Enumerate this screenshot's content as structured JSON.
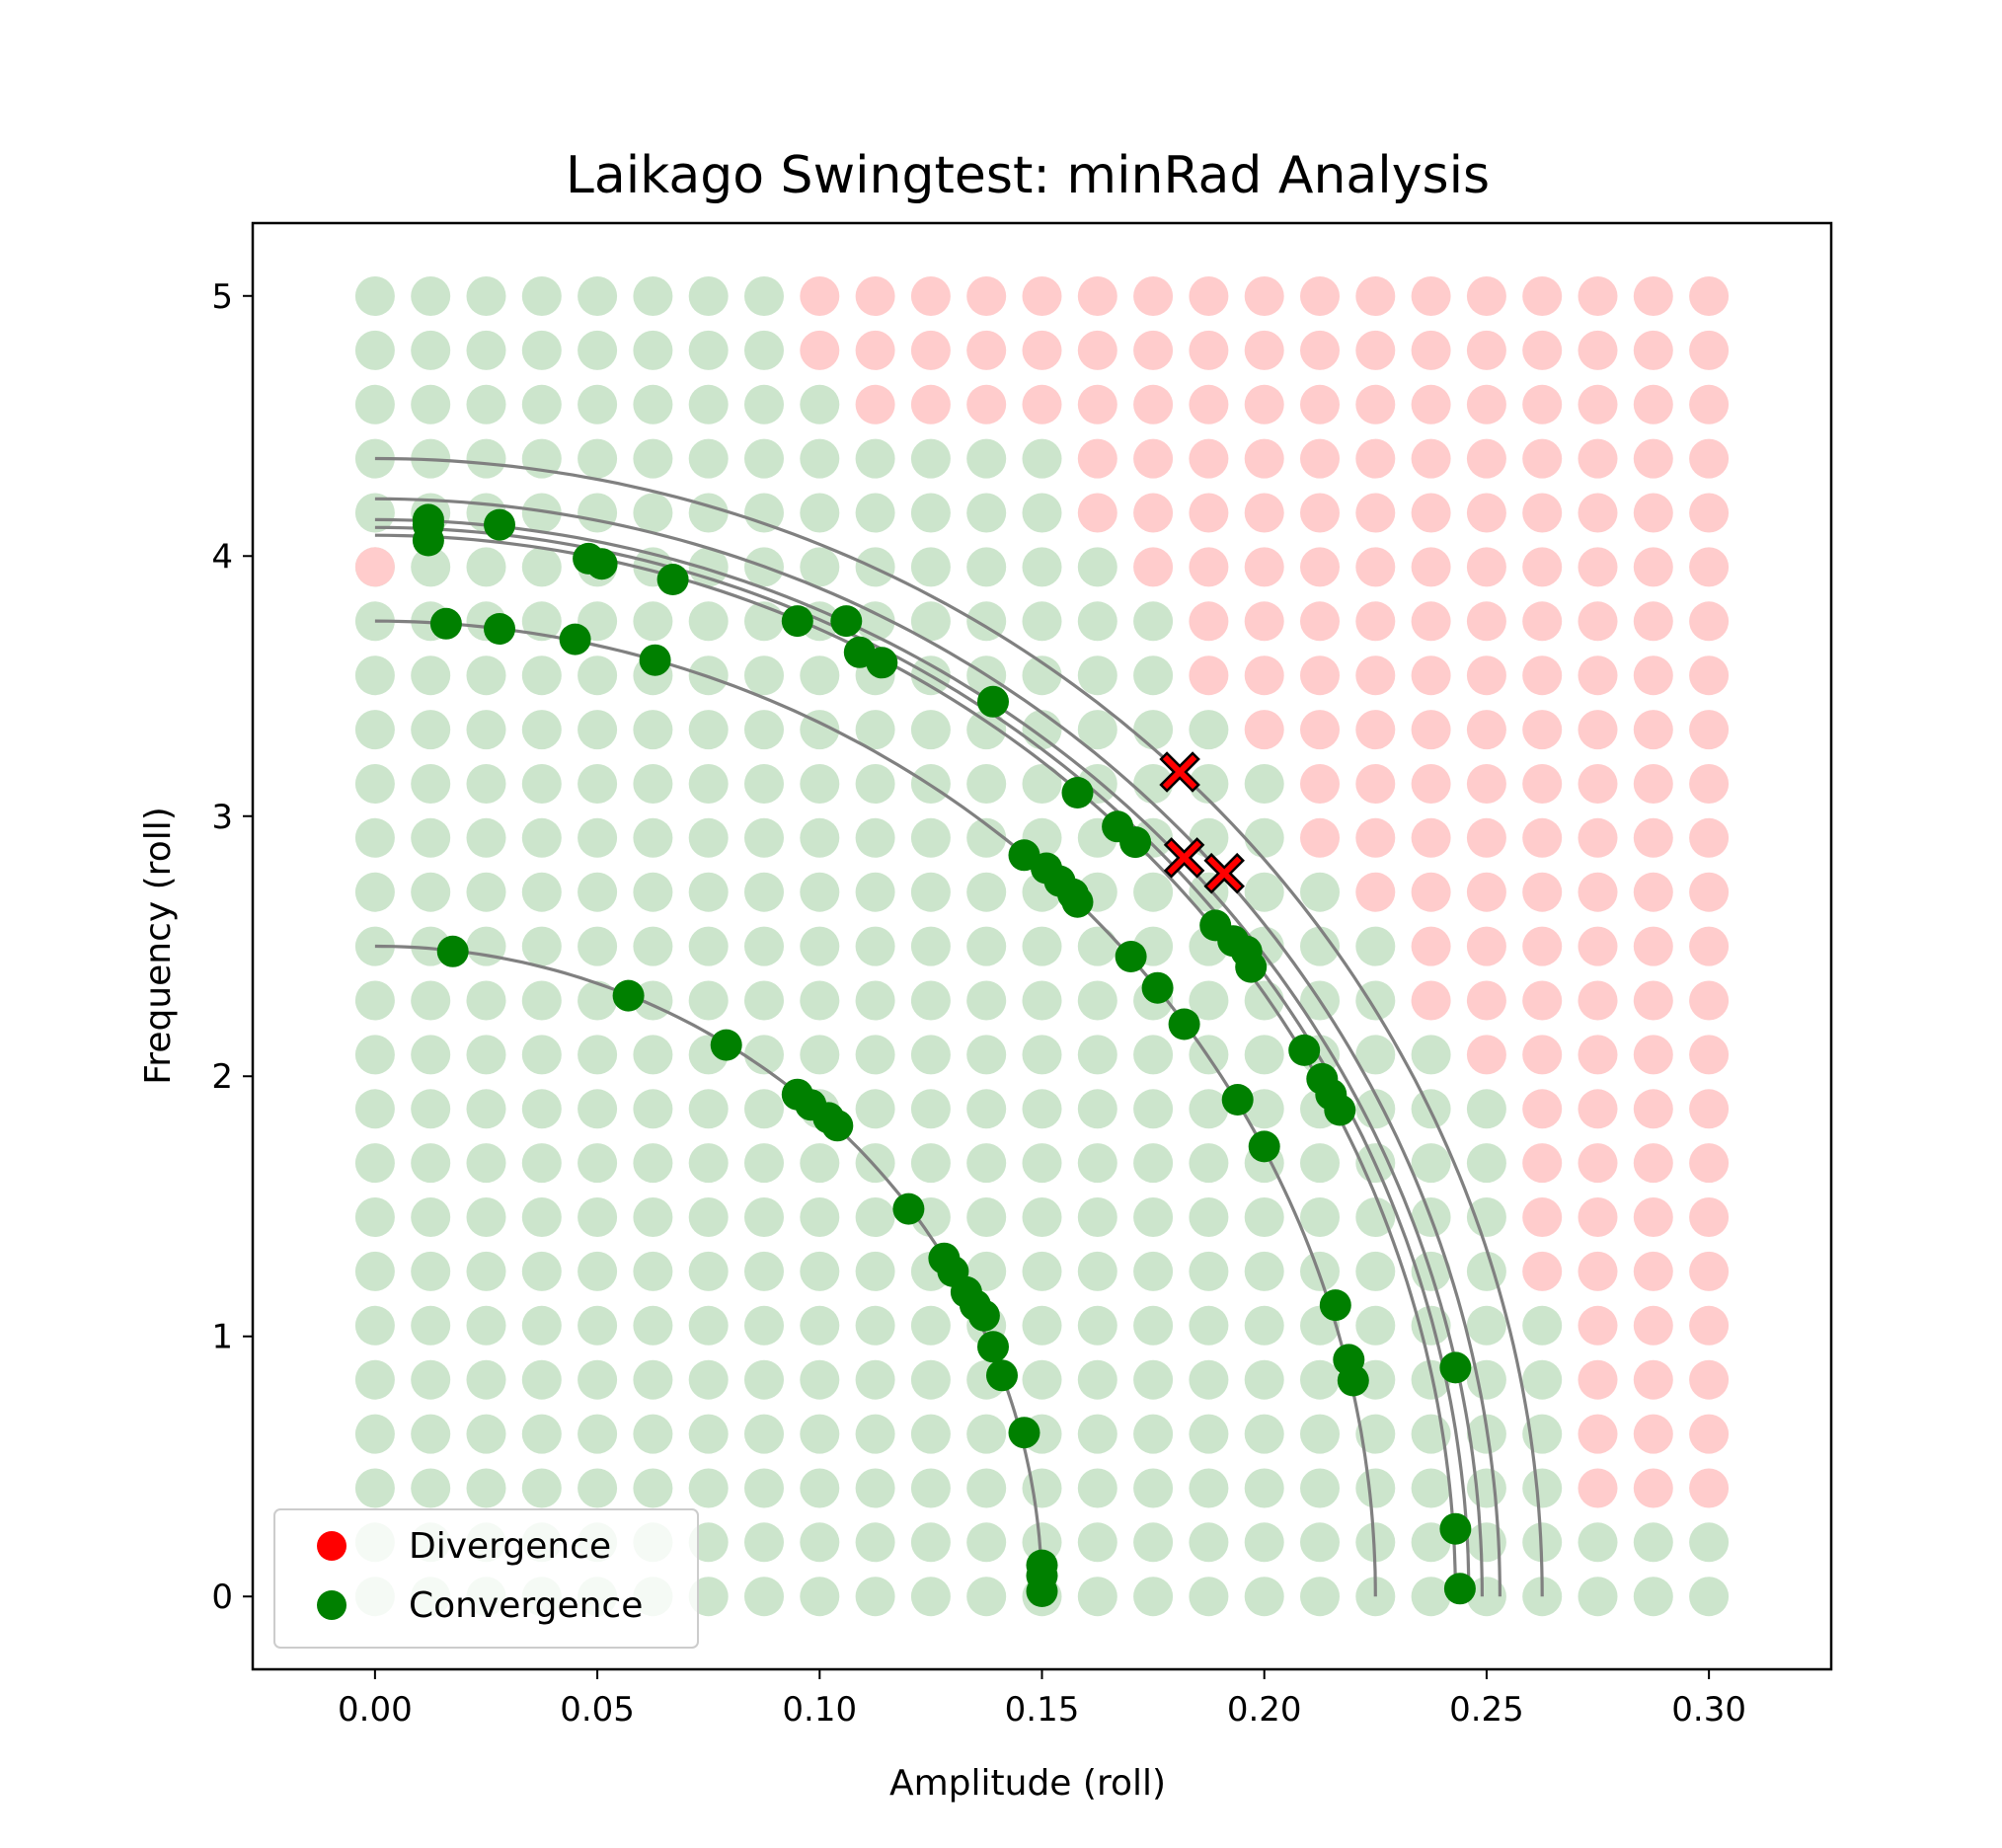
{
  "chart_data": {
    "type": "scatter",
    "title": "Laikago Swingtest: minRad Analysis",
    "xlabel": "Amplitude (roll)",
    "ylabel": "Frequency (roll)",
    "xlim": [
      -0.0275,
      0.3275
    ],
    "ylim": [
      -0.28,
      5.28
    ],
    "xticks": [
      "0.00",
      "0.05",
      "0.10",
      "0.15",
      "0.20",
      "0.25",
      "0.30"
    ],
    "yticks": [
      "0",
      "1",
      "2",
      "3",
      "4",
      "5"
    ],
    "legend": {
      "position": "lower-left",
      "entries": [
        "Divergence",
        "Convergence"
      ]
    },
    "colors": {
      "divergence": "#ff0000",
      "convergence": "#008000",
      "divergence_grid": "#ffcccc",
      "convergence_grid": "#cce5cc",
      "fit_curve": "#808080"
    },
    "grid_sweep": {
      "x_start": 0.0,
      "x_step": 0.0125,
      "x_count": 25,
      "y_start": 0.0,
      "y_step": 0.2083,
      "y_count": 25,
      "divergence_boundary_x_at_each_y": [
        99,
        99,
        0.275,
        0.275,
        0.275,
        0.275,
        0.2625,
        0.2625,
        0.2625,
        0.2625,
        0.25,
        0.2375,
        0.2375,
        0.225,
        0.2125,
        0.2125,
        0.2,
        0.1875,
        0.1875,
        0.175,
        0.1625,
        0.1625,
        0.1125,
        0.1,
        0.1
      ],
      "extra_divergence_points": [
        [
          0.0,
          3.958
        ]
      ]
    },
    "fit_curves": [
      {
        "a": 0.15,
        "f": 2.5
      },
      {
        "a": 0.225,
        "f": 3.75
      },
      {
        "a": 0.243,
        "f": 4.08
      },
      {
        "a": 0.246,
        "f": 4.11
      },
      {
        "a": 0.249,
        "f": 4.14
      },
      {
        "a": 0.253,
        "f": 4.22
      },
      {
        "a": 0.2625,
        "f": 4.375
      }
    ],
    "convergence": [
      [
        0.0175,
        2.48
      ],
      [
        0.057,
        2.31
      ],
      [
        0.079,
        2.12
      ],
      [
        0.095,
        1.93
      ],
      [
        0.098,
        1.89
      ],
      [
        0.102,
        1.84
      ],
      [
        0.104,
        1.81
      ],
      [
        0.12,
        1.49
      ],
      [
        0.128,
        1.3
      ],
      [
        0.13,
        1.25
      ],
      [
        0.133,
        1.17
      ],
      [
        0.135,
        1.12
      ],
      [
        0.137,
        1.08
      ],
      [
        0.139,
        0.96
      ],
      [
        0.141,
        0.85
      ],
      [
        0.146,
        0.63
      ],
      [
        0.15,
        0.12
      ],
      [
        0.15,
        0.08
      ],
      [
        0.15,
        0.02
      ],
      [
        0.016,
        3.74
      ],
      [
        0.028,
        3.72
      ],
      [
        0.045,
        3.68
      ],
      [
        0.063,
        3.6
      ],
      [
        0.146,
        2.85
      ],
      [
        0.151,
        2.8
      ],
      [
        0.154,
        2.75
      ],
      [
        0.157,
        2.7
      ],
      [
        0.158,
        2.67
      ],
      [
        0.17,
        2.46
      ],
      [
        0.176,
        2.34
      ],
      [
        0.182,
        2.2
      ],
      [
        0.194,
        1.91
      ],
      [
        0.2,
        1.73
      ],
      [
        0.216,
        1.12
      ],
      [
        0.219,
        0.91
      ],
      [
        0.22,
        0.83
      ],
      [
        0.012,
        4.14
      ],
      [
        0.012,
        4.12
      ],
      [
        0.012,
        4.06
      ],
      [
        0.028,
        4.12
      ],
      [
        0.048,
        3.99
      ],
      [
        0.051,
        3.97
      ],
      [
        0.067,
        3.91
      ],
      [
        0.095,
        3.75
      ],
      [
        0.106,
        3.75
      ],
      [
        0.109,
        3.63
      ],
      [
        0.114,
        3.59
      ],
      [
        0.139,
        3.44
      ],
      [
        0.158,
        3.09
      ],
      [
        0.167,
        2.96
      ],
      [
        0.171,
        2.9
      ],
      [
        0.189,
        2.58
      ],
      [
        0.193,
        2.52
      ],
      [
        0.196,
        2.48
      ],
      [
        0.197,
        2.42
      ],
      [
        0.209,
        2.1
      ],
      [
        0.213,
        1.99
      ],
      [
        0.215,
        1.93
      ],
      [
        0.217,
        1.87
      ],
      [
        0.243,
        0.88
      ],
      [
        0.243,
        0.26
      ],
      [
        0.244,
        0.03
      ]
    ],
    "divergence": [
      [
        0.181,
        3.17
      ],
      [
        0.182,
        2.84
      ],
      [
        0.191,
        2.78
      ]
    ]
  }
}
